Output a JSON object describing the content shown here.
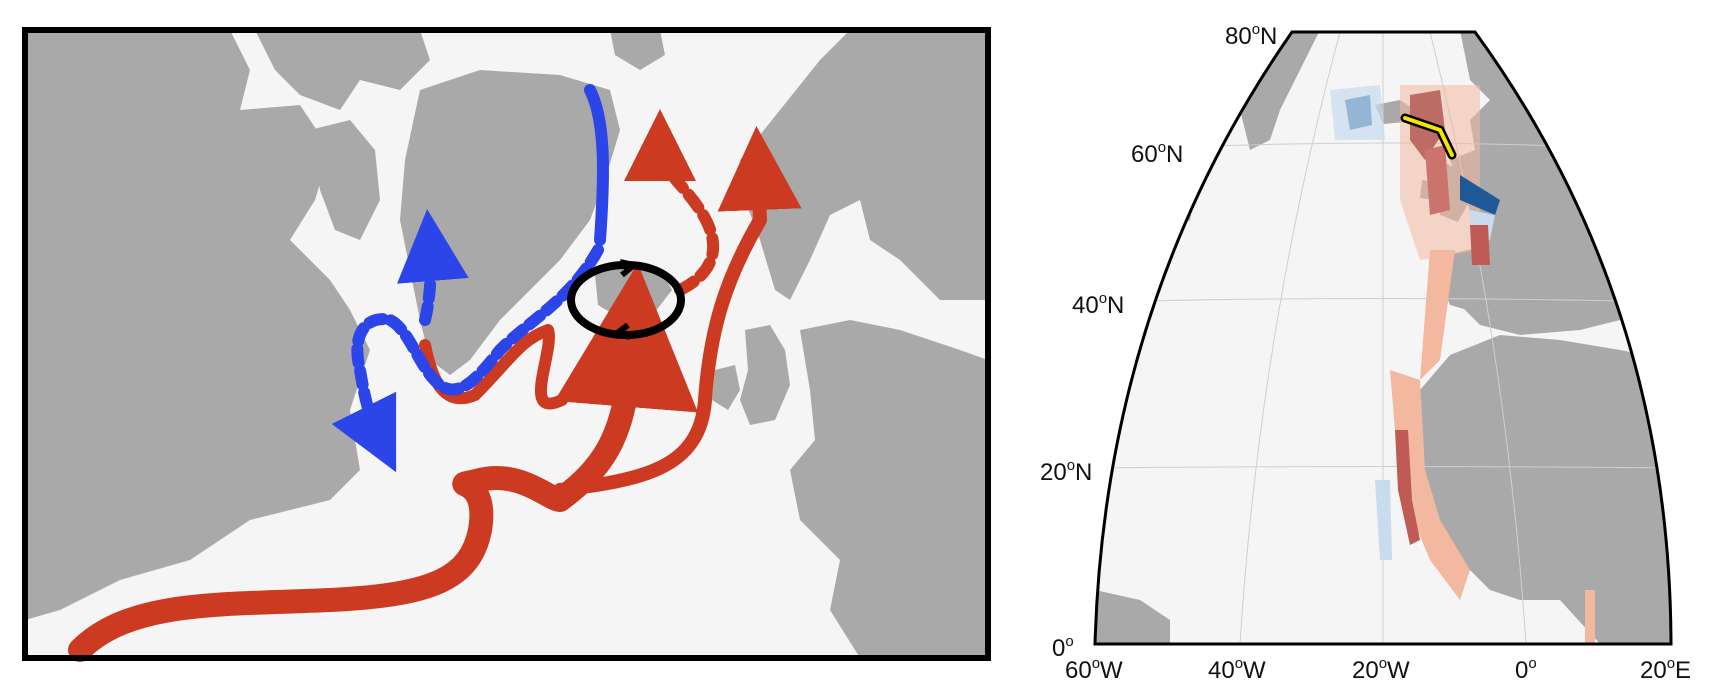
{
  "colors": {
    "land": "#a9a9a9",
    "ocean": "#f5f5f5",
    "warm_current": "#cc3a22",
    "cold_current": "#2b45e8",
    "gyre": "#000000",
    "section_line": "#f4e600",
    "anomaly_positive_strong": "#7a0f1e",
    "anomaly_positive_weak": "#f2b8a0",
    "anomaly_negative_strong": "#1f5a96",
    "anomaly_negative_weak": "#c8dcee"
  },
  "schematic_map": {
    "currents": [
      {
        "kind": "warm",
        "style": "solid",
        "name": ""
      },
      {
        "kind": "warm",
        "style": "dashed",
        "name": ""
      },
      {
        "kind": "cold",
        "style": "solid",
        "name": ""
      },
      {
        "kind": "cold",
        "style": "dashed",
        "name": ""
      }
    ],
    "gyre_icon": "circulation-arrows-icon"
  },
  "anomaly_map": {
    "lat_labels": [
      {
        "deg": "80",
        "sup": "o",
        "hemi": "N"
      },
      {
        "deg": "60",
        "sup": "o",
        "hemi": "N"
      },
      {
        "deg": "40",
        "sup": "o",
        "hemi": "N"
      },
      {
        "deg": "20",
        "sup": "o",
        "hemi": "N"
      },
      {
        "deg": "0",
        "sup": "o",
        "hemi": ""
      }
    ],
    "lon_labels": [
      {
        "deg": "60",
        "sup": "o",
        "hemi": "W"
      },
      {
        "deg": "40",
        "sup": "o",
        "hemi": "W"
      },
      {
        "deg": "20",
        "sup": "o",
        "hemi": "W"
      },
      {
        "deg": "0",
        "sup": "o",
        "hemi": ""
      },
      {
        "deg": "20",
        "sup": "o",
        "hemi": "E"
      }
    ]
  }
}
